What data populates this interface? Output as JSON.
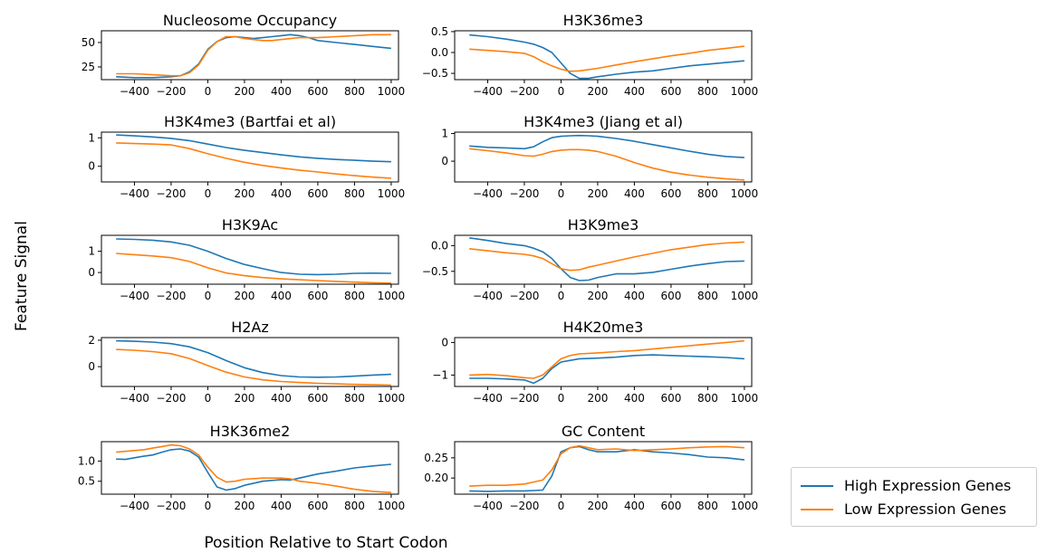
{
  "figure": {
    "ylabel": "Feature Signal",
    "xlabel": "Position Relative to Start Codon"
  },
  "legend": {
    "placement": "bottom-right",
    "items": [
      {
        "label": "High Expression Genes",
        "color": "#1f77b4"
      },
      {
        "label": "Low Expression Genes",
        "color": "#ff7f0e"
      }
    ]
  },
  "chart_data": [
    {
      "type": "line",
      "title": "Nucleosome Occupancy",
      "xlim": [
        -580,
        1040
      ],
      "ylim": [
        12,
        62
      ],
      "xticks": [
        -400,
        -200,
        0,
        200,
        400,
        600,
        800,
        1000
      ],
      "yticks": [
        25,
        50
      ],
      "x": [
        -500,
        -400,
        -300,
        -200,
        -150,
        -100,
        -50,
        0,
        50,
        100,
        150,
        200,
        250,
        300,
        350,
        400,
        450,
        500,
        550,
        600,
        700,
        800,
        900,
        1000
      ],
      "series": [
        {
          "name": "High Expression Genes",
          "color": "#1f77b4",
          "values": [
            15,
            14,
            14,
            15,
            16,
            20,
            28,
            43,
            51,
            55,
            56,
            55,
            54,
            55,
            56,
            57,
            58,
            57,
            55,
            52,
            50,
            48,
            46,
            44
          ]
        },
        {
          "name": "Low Expression Genes",
          "color": "#ff7f0e",
          "values": [
            18,
            18,
            17,
            16,
            16,
            19,
            27,
            42,
            51,
            56,
            56,
            54,
            53,
            52,
            52,
            53,
            54,
            55,
            55,
            55,
            56,
            57,
            58,
            58
          ]
        }
      ]
    },
    {
      "type": "line",
      "title": "H3K36me3",
      "xlim": [
        -580,
        1040
      ],
      "ylim": [
        -0.65,
        0.52
      ],
      "xticks": [
        -400,
        -200,
        0,
        200,
        400,
        600,
        800,
        1000
      ],
      "yticks": [
        0.5,
        0.0,
        -0.5
      ],
      "ytick_labels": [
        "0.5",
        "0.0",
        "−0.5"
      ],
      "x": [
        -500,
        -400,
        -300,
        -200,
        -150,
        -100,
        -50,
        0,
        50,
        100,
        150,
        200,
        300,
        400,
        500,
        600,
        700,
        800,
        900,
        1000
      ],
      "series": [
        {
          "name": "High Expression Genes",
          "color": "#1f77b4",
          "values": [
            0.42,
            0.38,
            0.32,
            0.25,
            0.2,
            0.12,
            0.0,
            -0.25,
            -0.5,
            -0.62,
            -0.62,
            -0.58,
            -0.52,
            -0.47,
            -0.44,
            -0.38,
            -0.32,
            -0.28,
            -0.24,
            -0.2
          ]
        },
        {
          "name": "Low Expression Genes",
          "color": "#ff7f0e",
          "values": [
            0.08,
            0.05,
            0.02,
            -0.02,
            -0.1,
            -0.22,
            -0.32,
            -0.4,
            -0.45,
            -0.44,
            -0.41,
            -0.38,
            -0.3,
            -0.22,
            -0.15,
            -0.08,
            -0.02,
            0.05,
            0.1,
            0.15
          ]
        }
      ]
    },
    {
      "type": "line",
      "title": "H3K4me3 (Bartfai et al)",
      "xlim": [
        -580,
        1040
      ],
      "ylim": [
        -0.55,
        1.2
      ],
      "xticks": [
        -400,
        -200,
        0,
        200,
        400,
        600,
        800,
        1000
      ],
      "yticks": [
        1,
        0
      ],
      "x": [
        -500,
        -400,
        -300,
        -200,
        -100,
        0,
        100,
        200,
        300,
        400,
        500,
        600,
        700,
        800,
        900,
        1000
      ],
      "series": [
        {
          "name": "High Expression Genes",
          "color": "#1f77b4",
          "values": [
            1.1,
            1.07,
            1.03,
            0.98,
            0.9,
            0.78,
            0.66,
            0.56,
            0.48,
            0.4,
            0.33,
            0.28,
            0.24,
            0.21,
            0.18,
            0.16
          ]
        },
        {
          "name": "Low Expression Genes",
          "color": "#ff7f0e",
          "values": [
            0.82,
            0.8,
            0.78,
            0.75,
            0.62,
            0.44,
            0.28,
            0.14,
            0.03,
            -0.06,
            -0.14,
            -0.2,
            -0.27,
            -0.33,
            -0.38,
            -0.42
          ]
        }
      ]
    },
    {
      "type": "line",
      "title": "H3K4me3 (Jiang et al)",
      "xlim": [
        -580,
        1040
      ],
      "ylim": [
        -0.75,
        1.05
      ],
      "xticks": [
        -400,
        -200,
        0,
        200,
        400,
        600,
        800,
        1000
      ],
      "yticks": [
        1,
        0
      ],
      "x": [
        -500,
        -400,
        -300,
        -200,
        -150,
        -100,
        -50,
        0,
        50,
        100,
        150,
        200,
        300,
        400,
        500,
        600,
        700,
        800,
        900,
        1000
      ],
      "series": [
        {
          "name": "High Expression Genes",
          "color": "#1f77b4",
          "values": [
            0.55,
            0.5,
            0.48,
            0.45,
            0.52,
            0.7,
            0.85,
            0.9,
            0.92,
            0.93,
            0.92,
            0.9,
            0.82,
            0.72,
            0.6,
            0.48,
            0.36,
            0.25,
            0.17,
            0.13
          ]
        },
        {
          "name": "Low Expression Genes",
          "color": "#ff7f0e",
          "values": [
            0.45,
            0.38,
            0.3,
            0.2,
            0.18,
            0.25,
            0.35,
            0.4,
            0.42,
            0.42,
            0.4,
            0.35,
            0.18,
            -0.05,
            -0.25,
            -0.4,
            -0.5,
            -0.58,
            -0.64,
            -0.68
          ]
        }
      ]
    },
    {
      "type": "line",
      "title": "H3K9Ac",
      "xlim": [
        -580,
        1040
      ],
      "ylim": [
        -0.55,
        1.75
      ],
      "xticks": [
        -400,
        -200,
        0,
        200,
        400,
        600,
        800,
        1000
      ],
      "yticks": [
        1,
        0
      ],
      "x": [
        -500,
        -400,
        -300,
        -200,
        -100,
        0,
        100,
        200,
        300,
        400,
        500,
        600,
        700,
        800,
        900,
        1000
      ],
      "series": [
        {
          "name": "High Expression Genes",
          "color": "#1f77b4",
          "values": [
            1.58,
            1.56,
            1.52,
            1.44,
            1.28,
            1.0,
            0.66,
            0.38,
            0.18,
            0.0,
            -0.08,
            -0.1,
            -0.08,
            -0.04,
            -0.03,
            -0.04
          ]
        },
        {
          "name": "Low Expression Genes",
          "color": "#ff7f0e",
          "values": [
            0.9,
            0.84,
            0.78,
            0.7,
            0.52,
            0.22,
            -0.02,
            -0.15,
            -0.24,
            -0.3,
            -0.34,
            -0.38,
            -0.42,
            -0.45,
            -0.48,
            -0.5
          ]
        }
      ]
    },
    {
      "type": "line",
      "title": "H3K9me3",
      "xlim": [
        -580,
        1040
      ],
      "ylim": [
        -0.75,
        0.2
      ],
      "xticks": [
        -400,
        -200,
        0,
        200,
        400,
        600,
        800,
        1000
      ],
      "yticks": [
        0.0,
        -0.5
      ],
      "ytick_labels": [
        "0.0",
        "−0.5"
      ],
      "x": [
        -500,
        -400,
        -300,
        -200,
        -150,
        -100,
        -50,
        0,
        50,
        100,
        150,
        200,
        300,
        400,
        500,
        600,
        700,
        800,
        900,
        1000
      ],
      "series": [
        {
          "name": "High Expression Genes",
          "color": "#1f77b4",
          "values": [
            0.15,
            0.1,
            0.04,
            0.0,
            -0.05,
            -0.12,
            -0.25,
            -0.45,
            -0.62,
            -0.68,
            -0.67,
            -0.62,
            -0.55,
            -0.55,
            -0.52,
            -0.46,
            -0.4,
            -0.35,
            -0.31,
            -0.3
          ]
        },
        {
          "name": "Low Expression Genes",
          "color": "#ff7f0e",
          "values": [
            -0.06,
            -0.1,
            -0.14,
            -0.17,
            -0.2,
            -0.25,
            -0.35,
            -0.45,
            -0.48,
            -0.47,
            -0.42,
            -0.38,
            -0.3,
            -0.22,
            -0.15,
            -0.08,
            -0.03,
            0.02,
            0.05,
            0.07
          ]
        }
      ]
    },
    {
      "type": "line",
      "title": "H2Az",
      "xlim": [
        -580,
        1040
      ],
      "ylim": [
        -1.5,
        2.2
      ],
      "xticks": [
        -400,
        -200,
        0,
        200,
        400,
        600,
        800,
        1000
      ],
      "yticks": [
        2,
        0
      ],
      "x": [
        -500,
        -400,
        -300,
        -200,
        -100,
        0,
        100,
        200,
        300,
        400,
        500,
        600,
        700,
        800,
        900,
        1000
      ],
      "series": [
        {
          "name": "High Expression Genes",
          "color": "#1f77b4",
          "values": [
            1.95,
            1.92,
            1.86,
            1.74,
            1.5,
            1.06,
            0.46,
            -0.08,
            -0.45,
            -0.68,
            -0.78,
            -0.8,
            -0.78,
            -0.72,
            -0.64,
            -0.58
          ]
        },
        {
          "name": "Low Expression Genes",
          "color": "#ff7f0e",
          "values": [
            1.3,
            1.24,
            1.14,
            0.98,
            0.62,
            0.08,
            -0.42,
            -0.78,
            -1.0,
            -1.12,
            -1.2,
            -1.26,
            -1.3,
            -1.34,
            -1.37,
            -1.4
          ]
        }
      ]
    },
    {
      "type": "line",
      "title": "H4K20me3",
      "xlim": [
        -580,
        1040
      ],
      "ylim": [
        -1.35,
        0.15
      ],
      "xticks": [
        -400,
        -200,
        0,
        200,
        400,
        600,
        800,
        1000
      ],
      "yticks": [
        0,
        -1
      ],
      "ytick_labels": [
        "0",
        "−1"
      ],
      "x": [
        -500,
        -400,
        -300,
        -200,
        -150,
        -100,
        -50,
        0,
        50,
        100,
        200,
        300,
        400,
        500,
        600,
        700,
        800,
        900,
        1000
      ],
      "series": [
        {
          "name": "High Expression Genes",
          "color": "#1f77b4",
          "values": [
            -1.1,
            -1.1,
            -1.12,
            -1.15,
            -1.25,
            -1.1,
            -0.8,
            -0.6,
            -0.55,
            -0.5,
            -0.48,
            -0.45,
            -0.4,
            -0.38,
            -0.4,
            -0.42,
            -0.44,
            -0.46,
            -0.5
          ]
        },
        {
          "name": "Low Expression Genes",
          "color": "#ff7f0e",
          "values": [
            -1.0,
            -0.98,
            -1.02,
            -1.08,
            -1.1,
            -1.0,
            -0.75,
            -0.5,
            -0.4,
            -0.35,
            -0.32,
            -0.28,
            -0.25,
            -0.2,
            -0.15,
            -0.1,
            -0.05,
            0.0,
            0.05
          ]
        }
      ]
    },
    {
      "type": "line",
      "title": "H3K36me2",
      "xlim": [
        -580,
        1040
      ],
      "ylim": [
        0.18,
        1.48
      ],
      "xticks": [
        -400,
        -200,
        0,
        200,
        400,
        600,
        800,
        1000
      ],
      "yticks": [
        1.0,
        0.5
      ],
      "ytick_labels": [
        "1.0",
        "0.5"
      ],
      "x": [
        -500,
        -450,
        -400,
        -350,
        -300,
        -250,
        -200,
        -150,
        -100,
        -50,
        0,
        50,
        100,
        150,
        200,
        300,
        400,
        450,
        500,
        600,
        700,
        800,
        900,
        1000
      ],
      "series": [
        {
          "name": "High Expression Genes",
          "color": "#1f77b4",
          "values": [
            1.05,
            1.04,
            1.08,
            1.12,
            1.15,
            1.22,
            1.28,
            1.3,
            1.25,
            1.1,
            0.72,
            0.36,
            0.28,
            0.32,
            0.4,
            0.5,
            0.54,
            0.53,
            0.58,
            0.68,
            0.75,
            0.83,
            0.88,
            0.92
          ]
        },
        {
          "name": "Low Expression Genes",
          "color": "#ff7f0e",
          "values": [
            1.22,
            1.24,
            1.26,
            1.28,
            1.32,
            1.36,
            1.4,
            1.38,
            1.3,
            1.15,
            0.85,
            0.6,
            0.48,
            0.5,
            0.55,
            0.58,
            0.58,
            0.56,
            0.5,
            0.45,
            0.38,
            0.3,
            0.25,
            0.22
          ]
        }
      ]
    },
    {
      "type": "line",
      "title": "GC Content",
      "xlim": [
        -580,
        1040
      ],
      "ylim": [
        0.16,
        0.29
      ],
      "xticks": [
        -400,
        -200,
        0,
        200,
        400,
        600,
        800,
        1000
      ],
      "yticks": [
        0.25,
        0.2
      ],
      "ytick_labels": [
        "0.25",
        "0.20"
      ],
      "x": [
        -500,
        -400,
        -300,
        -200,
        -150,
        -100,
        -50,
        0,
        50,
        100,
        150,
        200,
        300,
        400,
        500,
        600,
        700,
        800,
        900,
        1000
      ],
      "series": [
        {
          "name": "High Expression Genes",
          "color": "#1f77b4",
          "values": [
            0.168,
            0.167,
            0.168,
            0.168,
            0.169,
            0.17,
            0.205,
            0.265,
            0.275,
            0.278,
            0.27,
            0.265,
            0.265,
            0.27,
            0.265,
            0.262,
            0.258,
            0.252,
            0.25,
            0.245
          ]
        },
        {
          "name": "Low Expression Genes",
          "color": "#ff7f0e",
          "values": [
            0.18,
            0.182,
            0.182,
            0.185,
            0.19,
            0.195,
            0.22,
            0.26,
            0.275,
            0.28,
            0.275,
            0.27,
            0.272,
            0.268,
            0.27,
            0.272,
            0.275,
            0.277,
            0.278,
            0.275
          ]
        }
      ]
    }
  ]
}
